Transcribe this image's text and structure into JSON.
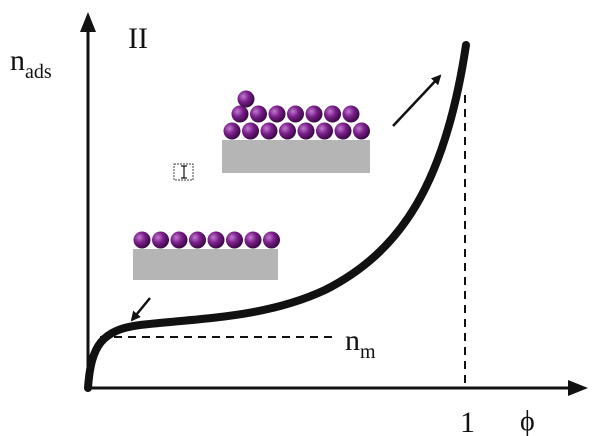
{
  "labels": {
    "isotherm_type": "II",
    "y_axis": {
      "main": "n",
      "sub": "ads"
    },
    "x_axis": "ϕ",
    "x_tick": "1",
    "monolayer": {
      "main": "n",
      "sub": "m"
    }
  }
}
